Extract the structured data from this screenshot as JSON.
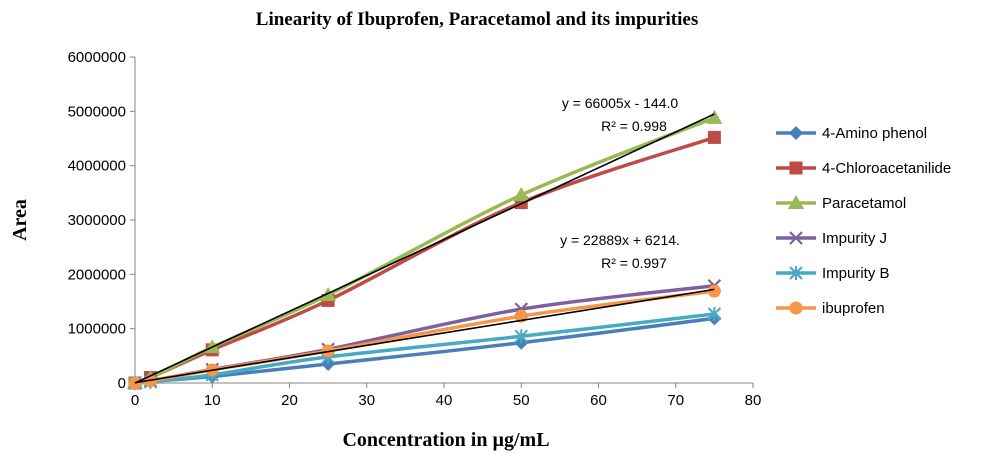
{
  "chart_data": {
    "type": "line",
    "title": "Linearity of Ibuprofen, Paracetamol and its impurities",
    "xlabel": "Concentration in µg/mL",
    "ylabel": "Area",
    "xlim": [
      0,
      80
    ],
    "ylim": [
      0,
      6000000
    ],
    "xticks": [
      0,
      10,
      20,
      30,
      40,
      50,
      60,
      70,
      80
    ],
    "yticks": [
      0,
      1000000,
      2000000,
      3000000,
      4000000,
      5000000,
      6000000
    ],
    "xtick_labels": [
      "0",
      "10",
      "20",
      "30",
      "40",
      "50",
      "60",
      "70",
      "80"
    ],
    "ytick_labels": [
      "0",
      "1000000",
      "2000000",
      "3000000",
      "4000000",
      "5000000",
      "6000000"
    ],
    "grid": false,
    "legend_position": "right",
    "x": [
      0,
      2,
      10,
      25,
      50,
      75
    ],
    "series": [
      {
        "name": "4-Amino phenol",
        "marker": "diamond",
        "color": "#4A7EBB",
        "values": [
          0,
          30000,
          120000,
          350000,
          740000,
          1190000
        ]
      },
      {
        "name": "4-Chloroacetanilide",
        "marker": "square",
        "color": "#BE4B48",
        "values": [
          0,
          100000,
          610000,
          1520000,
          3320000,
          4520000
        ]
      },
      {
        "name": "Paracetamol",
        "marker": "triangle",
        "color": "#98B954",
        "values": [
          0,
          90000,
          660000,
          1620000,
          3460000,
          4880000
        ]
      },
      {
        "name": "Impurity J",
        "marker": "x",
        "color": "#7D60A0",
        "values": [
          0,
          40000,
          250000,
          620000,
          1360000,
          1790000
        ]
      },
      {
        "name": "Impurity B",
        "marker": "star",
        "color": "#46AAC5",
        "values": [
          0,
          20000,
          150000,
          480000,
          860000,
          1270000
        ]
      },
      {
        "name": "ibuprofen",
        "marker": "circle",
        "color": "#F79646",
        "values": [
          0,
          40000,
          240000,
          590000,
          1230000,
          1690000
        ]
      }
    ],
    "trendlines": [
      {
        "slope": 66005,
        "intercept": -144.0,
        "x_range": [
          0,
          75
        ],
        "equation": "y = 66005x - 144.0",
        "r2": "R² = 0.998"
      },
      {
        "slope": 22889,
        "intercept": 6214,
        "x_range": [
          0,
          75
        ],
        "equation": "y = 22889x + 6214.",
        "r2": "R² = 0.997"
      }
    ]
  }
}
